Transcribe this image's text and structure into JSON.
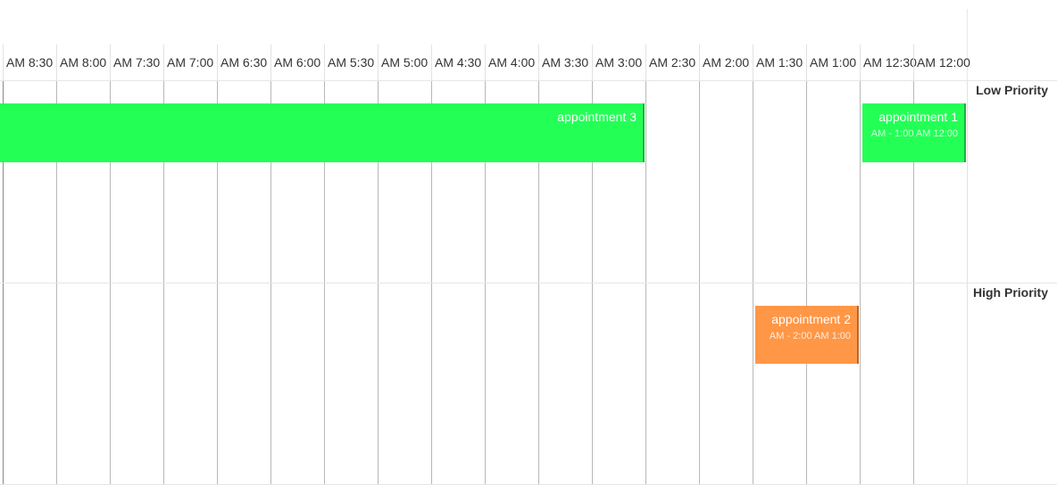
{
  "timeline": {
    "slots": [
      "AM 8:30",
      "AM 8:00",
      "AM 7:30",
      "AM 7:00",
      "AM 6:30",
      "AM 6:00",
      "AM 5:30",
      "AM 5:00",
      "AM 4:30",
      "AM 4:00",
      "AM 3:30",
      "AM 3:00",
      "AM 2:30",
      "AM 2:00",
      "AM 1:30",
      "AM 1:00",
      "AM 12:30",
      "AM 12:00"
    ]
  },
  "resources": [
    {
      "label": "Low Priority"
    },
    {
      "label": "High Priority"
    }
  ],
  "appointments": [
    {
      "title": "appointment 3",
      "time": "",
      "color": "#24ff56",
      "resource": 0
    },
    {
      "title": "appointment 1",
      "time": "AM - 1:00 AM 12:00",
      "color": "#24ff56",
      "resource": 0
    },
    {
      "title": "appointment 2",
      "time": "AM - 2:00 AM 1:00",
      "color": "#ff9747",
      "resource": 1
    }
  ]
}
